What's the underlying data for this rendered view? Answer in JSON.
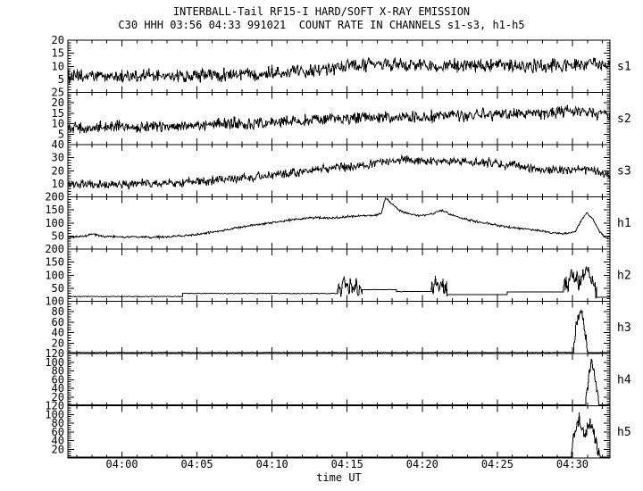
{
  "header": {
    "title": "INTERBALL-Tail RF15-I HARD/SOFT X-RAY EMISSION",
    "subtitle": "C30 HHH 03:56 04:33 991021  COUNT RATE IN CHANNELS s1-s3, h1-h5"
  },
  "chart_data": {
    "type": "line",
    "title": "INTERBALL-Tail RF15-I HARD/SOFT X-RAY EMISSION",
    "subtitle": "C30 HHH 03:56 04:33 991021  COUNT RATE IN CHANNELS s1-s3, h1-h5",
    "xlabel": "time UT",
    "ylabel": "",
    "background": "#ffffff",
    "trace_color": "#000000",
    "grid": false,
    "t_min": -3.6,
    "t_max": 32.5,
    "x_ticks": [
      {
        "t": 0,
        "label": "04:00"
      },
      {
        "t": 5,
        "label": "04:05"
      },
      {
        "t": 10,
        "label": "04:10"
      },
      {
        "t": 15,
        "label": "04:15"
      },
      {
        "t": 20,
        "label": "04:20"
      },
      {
        "t": 25,
        "label": "04:25"
      },
      {
        "t": 30,
        "label": "04:30"
      }
    ],
    "panels": [
      {
        "label": "s1",
        "ymax": 20,
        "yticks": [
          5,
          10,
          15,
          20
        ],
        "ymajor": 5,
        "yminor": 1,
        "segments": [
          {
            "noise": 3.2,
            "points": [
              [
                -3.6,
                6
              ],
              [
                0,
                6.2
              ],
              [
                4,
                6.3
              ],
              [
                8,
                7
              ],
              [
                12,
                8.5
              ],
              [
                15,
                9.8
              ],
              [
                17,
                10.8
              ],
              [
                19,
                10.5
              ],
              [
                22,
                10.2
              ],
              [
                25,
                10
              ],
              [
                28,
                10.2
              ],
              [
                31,
                10.8
              ],
              [
                32.5,
                10
              ]
            ]
          }
        ]
      },
      {
        "label": "s2",
        "ymax": 25,
        "yticks": [
          5,
          10,
          15,
          20,
          25
        ],
        "ymajor": 5,
        "yminor": 1,
        "segments": [
          {
            "noise": 3.6,
            "points": [
              [
                -3.6,
                8
              ],
              [
                0,
                8.5
              ],
              [
                4,
                9
              ],
              [
                8,
                10
              ],
              [
                12,
                11.5
              ],
              [
                15,
                12.8
              ],
              [
                18,
                13.2
              ],
              [
                21,
                13.6
              ],
              [
                24,
                14.2
              ],
              [
                27,
                15
              ],
              [
                30,
                15.8
              ],
              [
                32.5,
                14.5
              ]
            ]
          }
        ]
      },
      {
        "label": "s3",
        "ymax": 40,
        "yticks": [
          10,
          20,
          30,
          40
        ],
        "ymajor": 10,
        "yminor": 2,
        "segments": [
          {
            "noise": 4.2,
            "points": [
              [
                -3.6,
                9
              ],
              [
                0,
                9.5
              ],
              [
                3,
                10.5
              ],
              [
                6,
                12.5
              ],
              [
                9,
                15.5
              ],
              [
                12,
                19.5
              ],
              [
                15,
                23
              ],
              [
                17,
                26
              ],
              [
                18.5,
                28.5
              ],
              [
                20,
                27.5
              ],
              [
                22,
                27
              ],
              [
                24,
                26.5
              ],
              [
                26,
                24
              ],
              [
                27.5,
                22
              ],
              [
                29,
                20.5
              ],
              [
                30.5,
                21
              ],
              [
                31.5,
                20
              ],
              [
                32.5,
                16
              ]
            ]
          }
        ]
      },
      {
        "label": "h1",
        "ymax": 200,
        "yticks": [
          50,
          100,
          150,
          200
        ],
        "ymajor": 50,
        "yminor": 10,
        "segments": [
          {
            "noise": 5,
            "points": [
              [
                -3.6,
                46
              ],
              [
                -2.6,
                48
              ],
              [
                -2,
                57
              ],
              [
                -1.4,
                50
              ],
              [
                0,
                46
              ],
              [
                1,
                47
              ],
              [
                2,
                45
              ],
              [
                3,
                47
              ],
              [
                4,
                51
              ],
              [
                5,
                56
              ],
              [
                6,
                64
              ],
              [
                7,
                75
              ],
              [
                8,
                85
              ],
              [
                9,
                94
              ],
              [
                10,
                101
              ],
              [
                11,
                110
              ],
              [
                12,
                116
              ],
              [
                13,
                121
              ],
              [
                13.8,
                118
              ],
              [
                15,
                124
              ],
              [
                16,
                127
              ],
              [
                17,
                131
              ],
              [
                17.3,
                140
              ],
              [
                17.55,
                196
              ],
              [
                18,
                172
              ],
              [
                18.4,
                150
              ],
              [
                19,
                136
              ],
              [
                19.8,
                128
              ],
              [
                20.5,
                132
              ],
              [
                21.2,
                148
              ],
              [
                21.6,
                142
              ],
              [
                22,
                130
              ],
              [
                22.6,
                118
              ],
              [
                23.4,
                108
              ],
              [
                24.5,
                97
              ],
              [
                25.5,
                86
              ],
              [
                26.5,
                79
              ],
              [
                27.5,
                73
              ],
              [
                28.3,
                66
              ],
              [
                29,
                60
              ],
              [
                29.6,
                58
              ],
              [
                30.2,
                68
              ],
              [
                30.7,
                120
              ],
              [
                31,
                138
              ],
              [
                31.4,
                112
              ],
              [
                31.8,
                68
              ],
              [
                32.1,
                48
              ],
              [
                32.5,
                44
              ]
            ]
          }
        ]
      },
      {
        "label": "h2",
        "ymax": 200,
        "yticks": [
          50,
          100,
          150,
          200
        ],
        "ymajor": 50,
        "yminor": 10,
        "segments": [
          {
            "noise": 0.4,
            "points": [
              [
                -3.6,
                18
              ],
              [
                4.05,
                18
              ]
            ]
          },
          {
            "noise": 0.4,
            "points": [
              [
                4.05,
                30
              ],
              [
                14.35,
                30
              ]
            ]
          },
          {
            "noise": 42,
            "min": 12,
            "points": [
              [
                14.35,
                55
              ],
              [
                15.0,
                62
              ],
              [
                15.6,
                58
              ],
              [
                16.0,
                48
              ]
            ]
          },
          {
            "noise": 0.4,
            "points": [
              [
                16.0,
                45
              ],
              [
                18.3,
                45
              ]
            ]
          },
          {
            "noise": 0.4,
            "points": [
              [
                18.3,
                37
              ],
              [
                20.6,
                37
              ]
            ]
          },
          {
            "noise": 45,
            "min": 10,
            "points": [
              [
                20.6,
                45
              ],
              [
                21.0,
                62
              ],
              [
                21.4,
                55
              ],
              [
                21.7,
                40
              ]
            ]
          },
          {
            "noise": 0.4,
            "points": [
              [
                21.7,
                26
              ],
              [
                25.65,
                26
              ]
            ]
          },
          {
            "noise": 0.4,
            "points": [
              [
                25.65,
                36
              ],
              [
                29.4,
                36
              ]
            ]
          },
          {
            "noise": 52,
            "min": 10,
            "points": [
              [
                29.4,
                55
              ],
              [
                29.9,
                95
              ],
              [
                30.4,
                75
              ],
              [
                30.9,
                105
              ],
              [
                31.3,
                85
              ],
              [
                31.6,
                45
              ]
            ]
          },
          {
            "noise": 0.4,
            "points": [
              [
                31.6,
                16
              ],
              [
                32.5,
                16
              ]
            ]
          }
        ]
      },
      {
        "label": "h3",
        "ymax": 100,
        "yticks": [
          20,
          40,
          60,
          80,
          100
        ],
        "ymajor": 20,
        "yminor": 5,
        "segments": [
          {
            "noise": 0.4,
            "points": [
              [
                -3.6,
                2
              ],
              [
                30.1,
                2
              ]
            ]
          },
          {
            "noise": 16,
            "min": 1,
            "points": [
              [
                30.1,
                15
              ],
              [
                30.3,
                65
              ],
              [
                30.5,
                80
              ],
              [
                30.7,
                70
              ],
              [
                30.9,
                25
              ],
              [
                31.05,
                6
              ]
            ]
          },
          {
            "noise": 0.4,
            "points": [
              [
                31.05,
                2
              ],
              [
                32.5,
                2
              ]
            ]
          }
        ]
      },
      {
        "label": "h4",
        "ymax": 120,
        "yticks": [
          20,
          40,
          60,
          80,
          100,
          120
        ],
        "ymajor": 20,
        "yminor": 5,
        "segments": [
          {
            "noise": 0.4,
            "points": [
              [
                -3.6,
                2
              ],
              [
                30.9,
                2
              ]
            ]
          },
          {
            "noise": 18,
            "min": 1,
            "points": [
              [
                30.9,
                12
              ],
              [
                31.1,
                60
              ],
              [
                31.25,
                105
              ],
              [
                31.4,
                88
              ],
              [
                31.6,
                40
              ],
              [
                31.75,
                8
              ]
            ]
          },
          {
            "noise": 0.4,
            "points": [
              [
                31.75,
                2
              ],
              [
                32.5,
                2
              ]
            ]
          }
        ]
      },
      {
        "label": "h5",
        "ymax": 120,
        "yticks": [
          20,
          40,
          60,
          80,
          100,
          120
        ],
        "ymajor": 20,
        "yminor": 5,
        "segments": [
          {
            "noise": 0.4,
            "points": [
              [
                -3.6,
                2
              ],
              [
                29.95,
                2
              ]
            ]
          },
          {
            "noise": 22,
            "min": 1,
            "points": [
              [
                29.95,
                18
              ],
              [
                30.2,
                72
              ],
              [
                30.45,
                92
              ],
              [
                30.65,
                60
              ],
              [
                30.9,
                50
              ],
              [
                31.1,
                82
              ],
              [
                31.3,
                68
              ],
              [
                31.5,
                45
              ],
              [
                31.7,
                18
              ],
              [
                31.85,
                6
              ]
            ]
          },
          {
            "noise": 0.4,
            "points": [
              [
                31.85,
                2
              ],
              [
                32.5,
                2
              ]
            ]
          }
        ]
      }
    ]
  }
}
